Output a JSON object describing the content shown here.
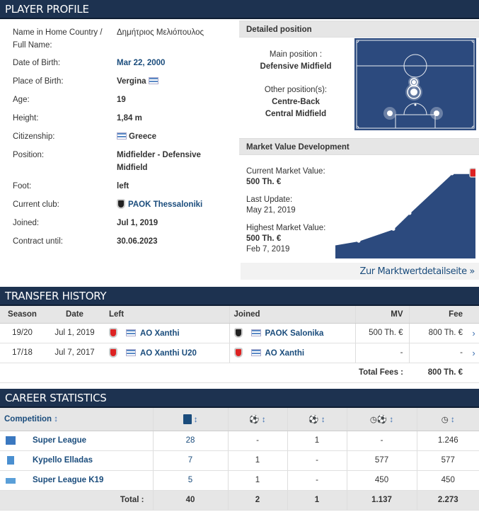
{
  "profile": {
    "header": "PLAYER PROFILE",
    "rows": [
      {
        "label": "Name in Home Country / Full Name:",
        "value": "Δημήτριος Μελιόπουλος"
      },
      {
        "label": "Date of Birth:",
        "value": "Mar 22, 2000"
      },
      {
        "label": "Place of Birth:",
        "value": "Vergina"
      },
      {
        "label": "Age:",
        "value": "19"
      },
      {
        "label": "Height:",
        "value": "1,84 m"
      },
      {
        "label": "Citizenship:",
        "value": "Greece"
      },
      {
        "label": "Position:",
        "value": "Midfielder - Defensive Midfield"
      },
      {
        "label": "Foot:",
        "value": "left"
      },
      {
        "label": "Current club:",
        "value": "PAOK Thessaloniki"
      },
      {
        "label": "Joined:",
        "value": "Jul 1, 2019"
      },
      {
        "label": "Contract until:",
        "value": "30.06.2023"
      }
    ]
  },
  "detailed_position": {
    "header": "Detailed position",
    "main_label": "Main position :",
    "main_value": "Defensive Midfield",
    "other_label": "Other position(s):",
    "other_values": [
      "Centre-Back",
      "Central Midfield"
    ]
  },
  "market_value": {
    "header": "Market Value Development",
    "current_label": "Current Market Value:",
    "current_value": "500 Th. €",
    "update_label": "Last Update:",
    "update_value": "May 21, 2019",
    "highest_label": "Highest Market Value:",
    "highest_value": "500 Th. €",
    "highest_date": "Feb 7, 2019",
    "link": "Zur Marktwertdetailseite »",
    "colors": {
      "area": "#2c4a7e",
      "line": "#ffffff"
    }
  },
  "chart_data": {
    "type": "area",
    "values": [
      0.1,
      0.15,
      0.3,
      0.5,
      1.0,
      1.0
    ],
    "unit": "relative market value"
  },
  "transfers": {
    "header": "TRANSFER HISTORY",
    "columns": {
      "season": "Season",
      "date": "Date",
      "left": "Left",
      "joined": "Joined",
      "mv": "MV",
      "fee": "Fee"
    },
    "rows": [
      {
        "season": "19/20",
        "date": "Jul 1, 2019",
        "left": "AO Xanthi",
        "joined": "PAOK Salonika",
        "mv": "500 Th. €",
        "fee": "800 Th. €"
      },
      {
        "season": "17/18",
        "date": "Jul 7, 2017",
        "left": "AO Xanthi U20",
        "joined": "AO Xanthi",
        "mv": "-",
        "fee": "-"
      }
    ],
    "total_label": "Total Fees :",
    "total_value": "800 Th. €"
  },
  "career": {
    "header": "CAREER STATISTICS",
    "competition_label": "Competition",
    "rows": [
      {
        "competition": "Super League",
        "apps": "28",
        "goals": "-",
        "assists": "1",
        "min_per_goal": "-",
        "minutes": "1.246"
      },
      {
        "competition": "Kypello Elladas",
        "apps": "7",
        "goals": "1",
        "assists": "-",
        "min_per_goal": "577",
        "minutes": "577"
      },
      {
        "competition": "Super League K19",
        "apps": "5",
        "goals": "1",
        "assists": "-",
        "min_per_goal": "450",
        "minutes": "450"
      }
    ],
    "total_label": "Total :",
    "totals": {
      "apps": "40",
      "goals": "2",
      "assists": "1",
      "min_per_goal": "1.137",
      "minutes": "2.273"
    }
  }
}
